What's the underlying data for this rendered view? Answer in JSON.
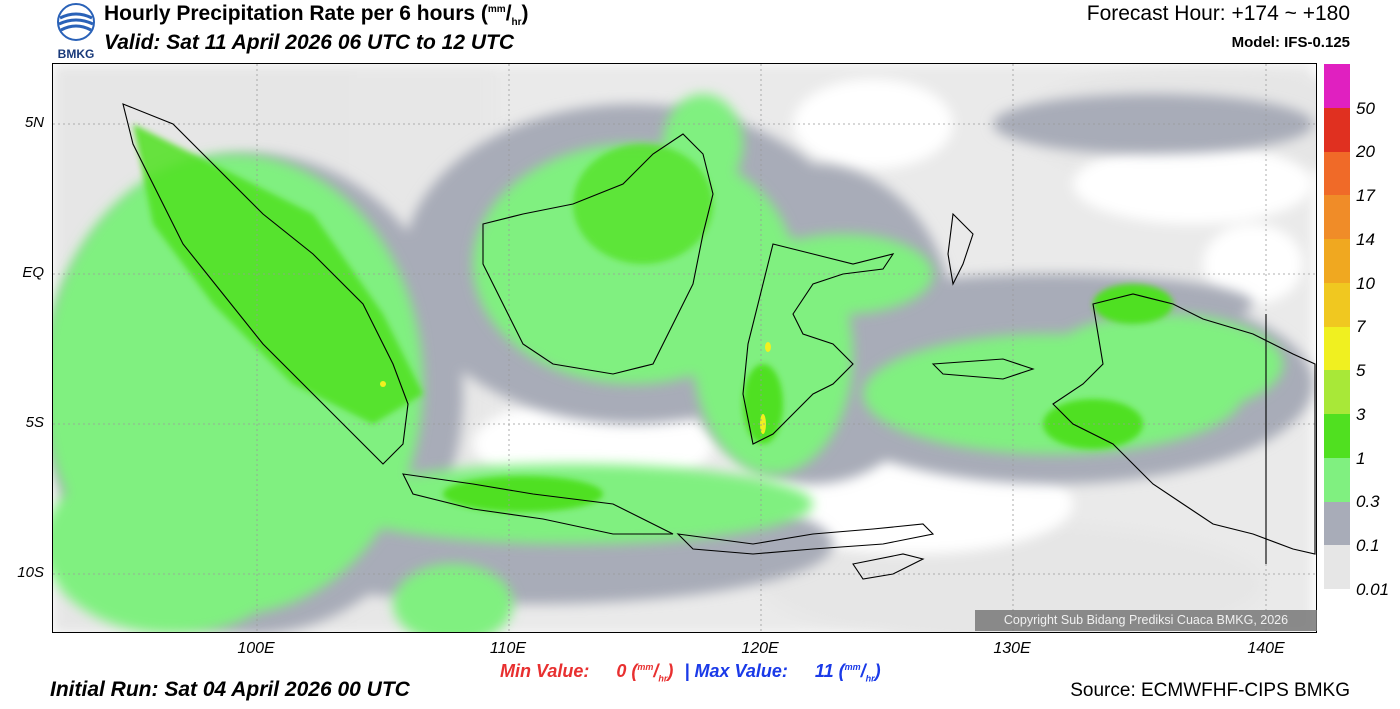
{
  "header": {
    "logo_text": "BMKG",
    "title_main": "Hourly Precipitation Rate per 6 hours (",
    "title_unit_num": "mm",
    "title_unit_sep": "/",
    "title_unit_den": "hr",
    "title_close": ")",
    "valid": "Valid: Sat 11 April 2026 06 UTC to 12 UTC",
    "forecast_hour": "Forecast Hour: +174 ~ +180",
    "model": "Model: IFS-0.125"
  },
  "map": {
    "lat_labels": [
      "5N",
      "EQ",
      "5S",
      "10S"
    ],
    "lon_labels": [
      "100E",
      "110E",
      "120E",
      "130E",
      "140E"
    ],
    "copyright": "Copyright Sub Bidang Prediksi Cuaca BMKG, 2026"
  },
  "colorbar": {
    "labels": [
      "50",
      "20",
      "17",
      "14",
      "10",
      "7",
      "5",
      "3",
      "1",
      "0.3",
      "0.1",
      "0.01"
    ],
    "colors": [
      "#e020c0",
      "#e03020",
      "#f06a28",
      "#f08c28",
      "#f0a820",
      "#f0c820",
      "#f0f020",
      "#a8e838",
      "#50e020",
      "#80f080",
      "#a8acb8",
      "#e6e6e6"
    ]
  },
  "footer": {
    "min_label": "Min Value:",
    "min_value": "0",
    "max_label": "Max Value:",
    "max_value": "11",
    "unit_num": "mm",
    "unit_den": "hr",
    "separator": "|",
    "initial_run": "Initial Run: Sat 04 April 2026 00 UTC",
    "source": "Source: ECMWFHF-CIPS BMKG"
  },
  "colors": {
    "min_color": "#e83030",
    "max_color": "#1a3ae8"
  }
}
